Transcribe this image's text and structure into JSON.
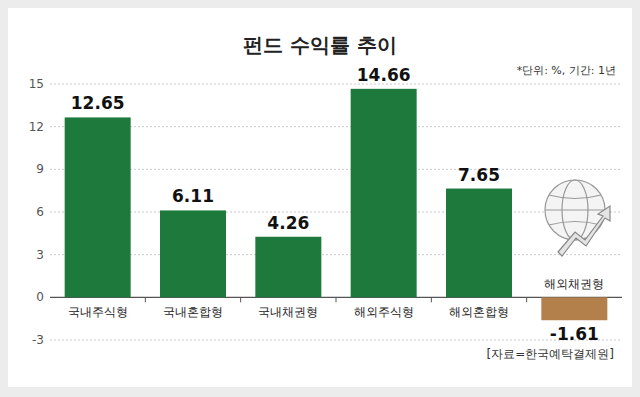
{
  "chart_data": {
    "type": "bar",
    "title": "펀드 수익률 추이",
    "note": "*단위: %, 기간: 1년",
    "source": "[자료=한국예탁결제원]",
    "categories": [
      "국내주식형",
      "국내혼합형",
      "국내채권형",
      "해외주식형",
      "해외혼합형",
      "해외채권형"
    ],
    "values": [
      12.65,
      6.11,
      4.26,
      14.66,
      7.65,
      -1.61
    ],
    "colors": [
      "#1e7a3c",
      "#1e7a3c",
      "#1e7a3c",
      "#1e7a3c",
      "#1e7a3c",
      "#b37f4b"
    ],
    "ylim": [
      -3,
      15
    ],
    "yticks": [
      -3,
      0,
      3,
      6,
      9,
      12,
      15
    ],
    "grid": true,
    "data_labels": true
  }
}
